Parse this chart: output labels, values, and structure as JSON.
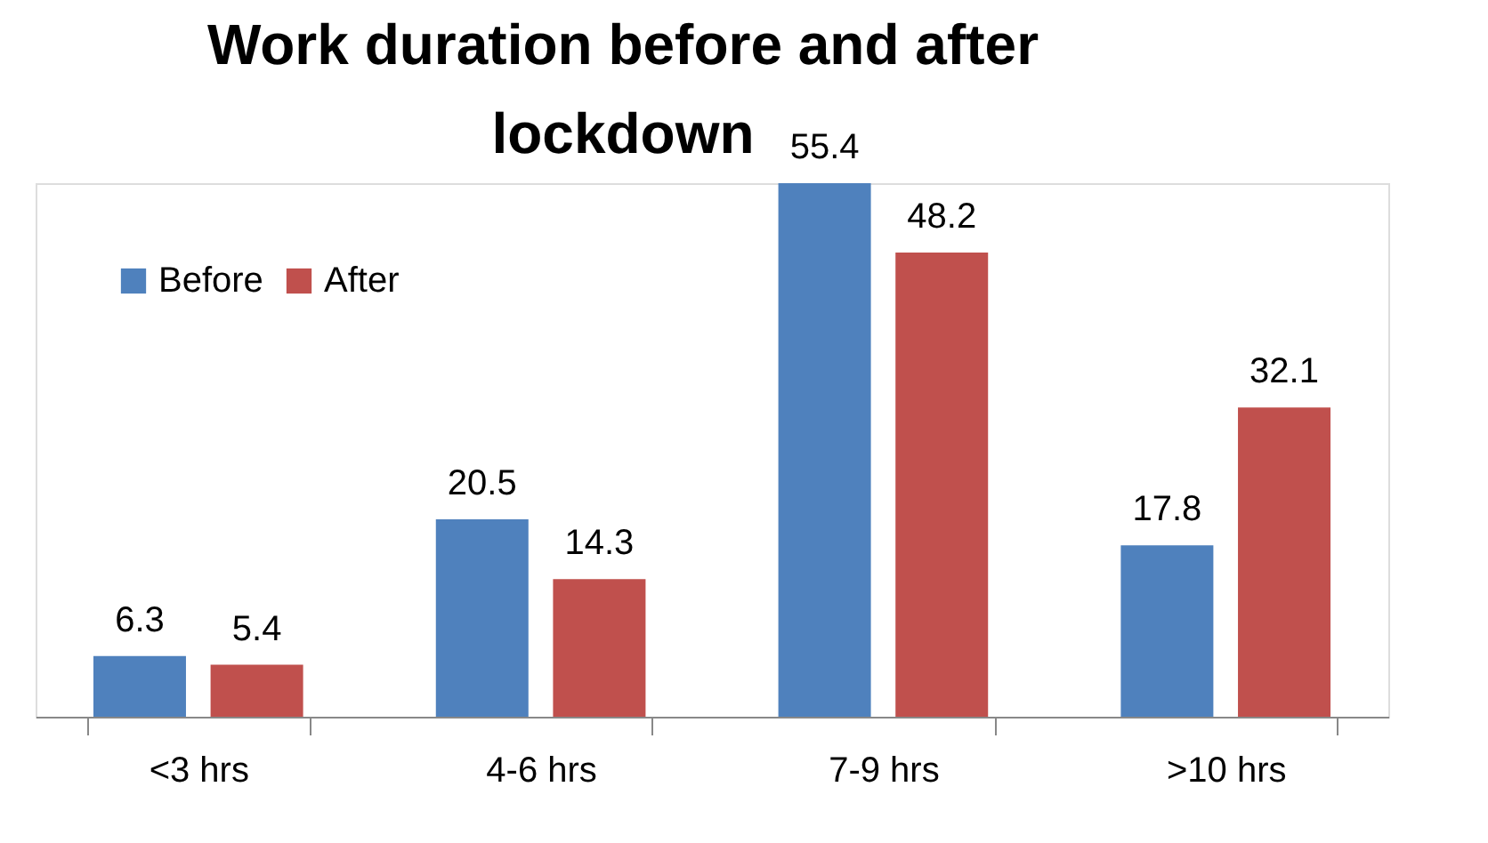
{
  "chart_data": {
    "type": "bar",
    "title": "Work duration before and after\nlockdown",
    "categories": [
      "<3 hrs",
      "4-6 hrs",
      "7-9 hrs",
      ">10 hrs"
    ],
    "series": [
      {
        "name": "Before",
        "color": "#4f81bd",
        "values": [
          6.3,
          20.5,
          55.4,
          17.8
        ]
      },
      {
        "name": "After",
        "color": "#c0504d",
        "values": [
          5.4,
          14.3,
          48.2,
          32.1
        ]
      }
    ],
    "data_labels": true,
    "legend": "top left"
  }
}
